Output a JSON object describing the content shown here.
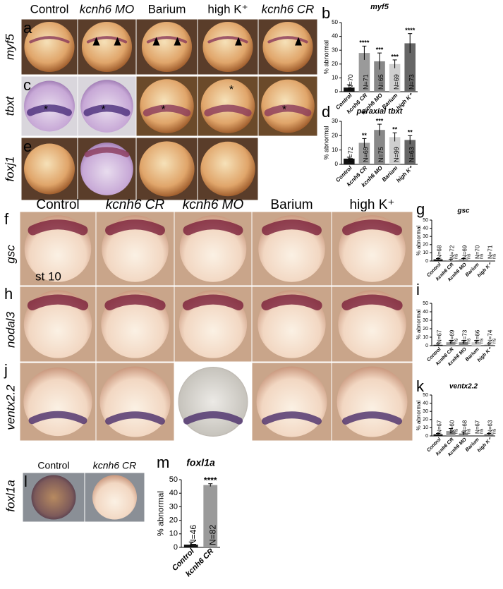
{
  "figure": {
    "top": {
      "columns": [
        "Control",
        "kcnh6 MO",
        "Barium",
        "high K⁺",
        "kcnh6 CR"
      ],
      "rows": [
        {
          "letter": "a",
          "label": "myf5"
        },
        {
          "letter": "c",
          "label": "tbxt",
          "marker": "*"
        },
        {
          "letter": "e",
          "label": "foxj1"
        }
      ]
    },
    "middle": {
      "columns": [
        "Control",
        "kcnh6 CR",
        "kcnh6 MO",
        "Barium",
        "high K⁺"
      ],
      "rows": [
        {
          "letter": "f",
          "label": "gsc"
        },
        {
          "letter": "h",
          "label": "nodal3"
        },
        {
          "letter": "j",
          "label": "ventx2.2"
        }
      ],
      "stage": "st 10"
    },
    "bottom": {
      "columns": [
        "Control",
        "kcnh6 CR"
      ],
      "rows": [
        {
          "letter": "l",
          "label": "foxl1a"
        }
      ]
    }
  },
  "chart_data": [
    {
      "type": "bar",
      "panel": "b",
      "title": "myf5",
      "ylabel": "% abnormal",
      "categories": [
        "Control",
        "kcnh6 CR",
        "kcnh6 MO",
        "Barium",
        "high K⁺"
      ],
      "values": [
        3,
        28,
        22,
        20,
        35
      ],
      "errors": [
        2,
        5,
        6,
        3,
        7
      ],
      "n_labels": [
        "N=70",
        "N=71",
        "N=65",
        "N=69",
        "N=73"
      ],
      "significance": [
        null,
        "****",
        "***",
        "***",
        "****"
      ],
      "colors": [
        "#111111",
        "#9a9a9a",
        "#888888",
        "#cfcfcf",
        "#666666"
      ],
      "ylim": [
        0,
        50
      ],
      "yticks": [
        0,
        10,
        20,
        30,
        40,
        50
      ]
    },
    {
      "type": "bar",
      "panel": "d",
      "title": "paraxial tbxt",
      "ylabel": "% abnormal",
      "categories": [
        "Control",
        "kcnh6 CR",
        "kcnh6 MO",
        "Barium",
        "high K⁺"
      ],
      "values": [
        4,
        15,
        24,
        19,
        17
      ],
      "errors": [
        1,
        3,
        4,
        3,
        3
      ],
      "n_labels": [
        "N=72",
        "N=69",
        "N=75",
        "N=99",
        "N=63"
      ],
      "significance": [
        null,
        "**",
        "***",
        "**",
        "**"
      ],
      "colors": [
        "#111111",
        "#9a9a9a",
        "#888888",
        "#cfcfcf",
        "#666666"
      ],
      "ylim": [
        0,
        30
      ],
      "yticks": [
        0,
        10,
        20,
        30
      ]
    },
    {
      "type": "bar",
      "panel": "g",
      "title": "gsc",
      "ylabel": "% abnormal",
      "categories": [
        "Control",
        "kcnh6 CR",
        "kcnh6 MO",
        "Barium",
        "high K⁺"
      ],
      "values": [
        2,
        1,
        2,
        0,
        0
      ],
      "errors": [
        1,
        1,
        1,
        0,
        0
      ],
      "n_labels": [
        "N=68",
        "N=72",
        "N=69",
        "N=70",
        "N=71"
      ],
      "significance": [
        null,
        "ns",
        "ns",
        "ns",
        "ns"
      ],
      "colors": [
        "#111111",
        "#9a9a9a",
        "#888888",
        "#cfcfcf",
        "#666666"
      ],
      "ylim": [
        0,
        50
      ],
      "yticks": [
        0,
        10,
        20,
        30,
        40,
        50
      ]
    },
    {
      "type": "bar",
      "panel": "i",
      "ylabel": "% abnormal",
      "categories": [
        "Control",
        "kcnh6 CR",
        "kcnh6 MO",
        "Barium",
        "high K⁺"
      ],
      "values": [
        1,
        4,
        4,
        4,
        1
      ],
      "errors": [
        1,
        2,
        2,
        2,
        1
      ],
      "n_labels": [
        "N=67",
        "N=69",
        "N=73",
        "N=66",
        "N=74"
      ],
      "significance": [
        null,
        "ns",
        "ns",
        "ns",
        "ns"
      ],
      "colors": [
        "#111111",
        "#9a9a9a",
        "#888888",
        "#cfcfcf",
        "#666666"
      ],
      "ylim": [
        0,
        50
      ],
      "yticks": [
        0,
        10,
        20,
        30,
        40,
        50
      ]
    },
    {
      "type": "bar",
      "panel": "k",
      "title": "ventx2.2",
      "ylabel": "% abnormal",
      "categories": [
        "Control",
        "kcnh6 CR",
        "kcnh6 MO",
        "Barium",
        "high K⁺"
      ],
      "values": [
        2,
        6,
        3,
        0,
        2
      ],
      "errors": [
        1,
        3,
        2,
        0,
        1
      ],
      "n_labels": [
        "N=67",
        "N=60",
        "N=68",
        "N=67",
        "N=63"
      ],
      "significance": [
        null,
        "ns",
        "ns",
        "ns",
        "ns"
      ],
      "colors": [
        "#111111",
        "#9a9a9a",
        "#888888",
        "#cfcfcf",
        "#666666"
      ],
      "ylim": [
        0,
        50
      ],
      "yticks": [
        0,
        10,
        20,
        30,
        40,
        50
      ]
    },
    {
      "type": "bar",
      "panel": "m",
      "title": "foxl1a",
      "ylabel": "% abnormal",
      "categories": [
        "Control",
        "kcnh6 CR"
      ],
      "values": [
        2,
        46
      ],
      "errors": [
        2,
        1
      ],
      "n_labels": [
        "N=46",
        "N=82"
      ],
      "significance": [
        null,
        "****"
      ],
      "colors": [
        "#111111",
        "#9a9a9a"
      ],
      "ylim": [
        0,
        50
      ],
      "yticks": [
        0,
        10,
        20,
        30,
        40,
        50
      ]
    }
  ]
}
